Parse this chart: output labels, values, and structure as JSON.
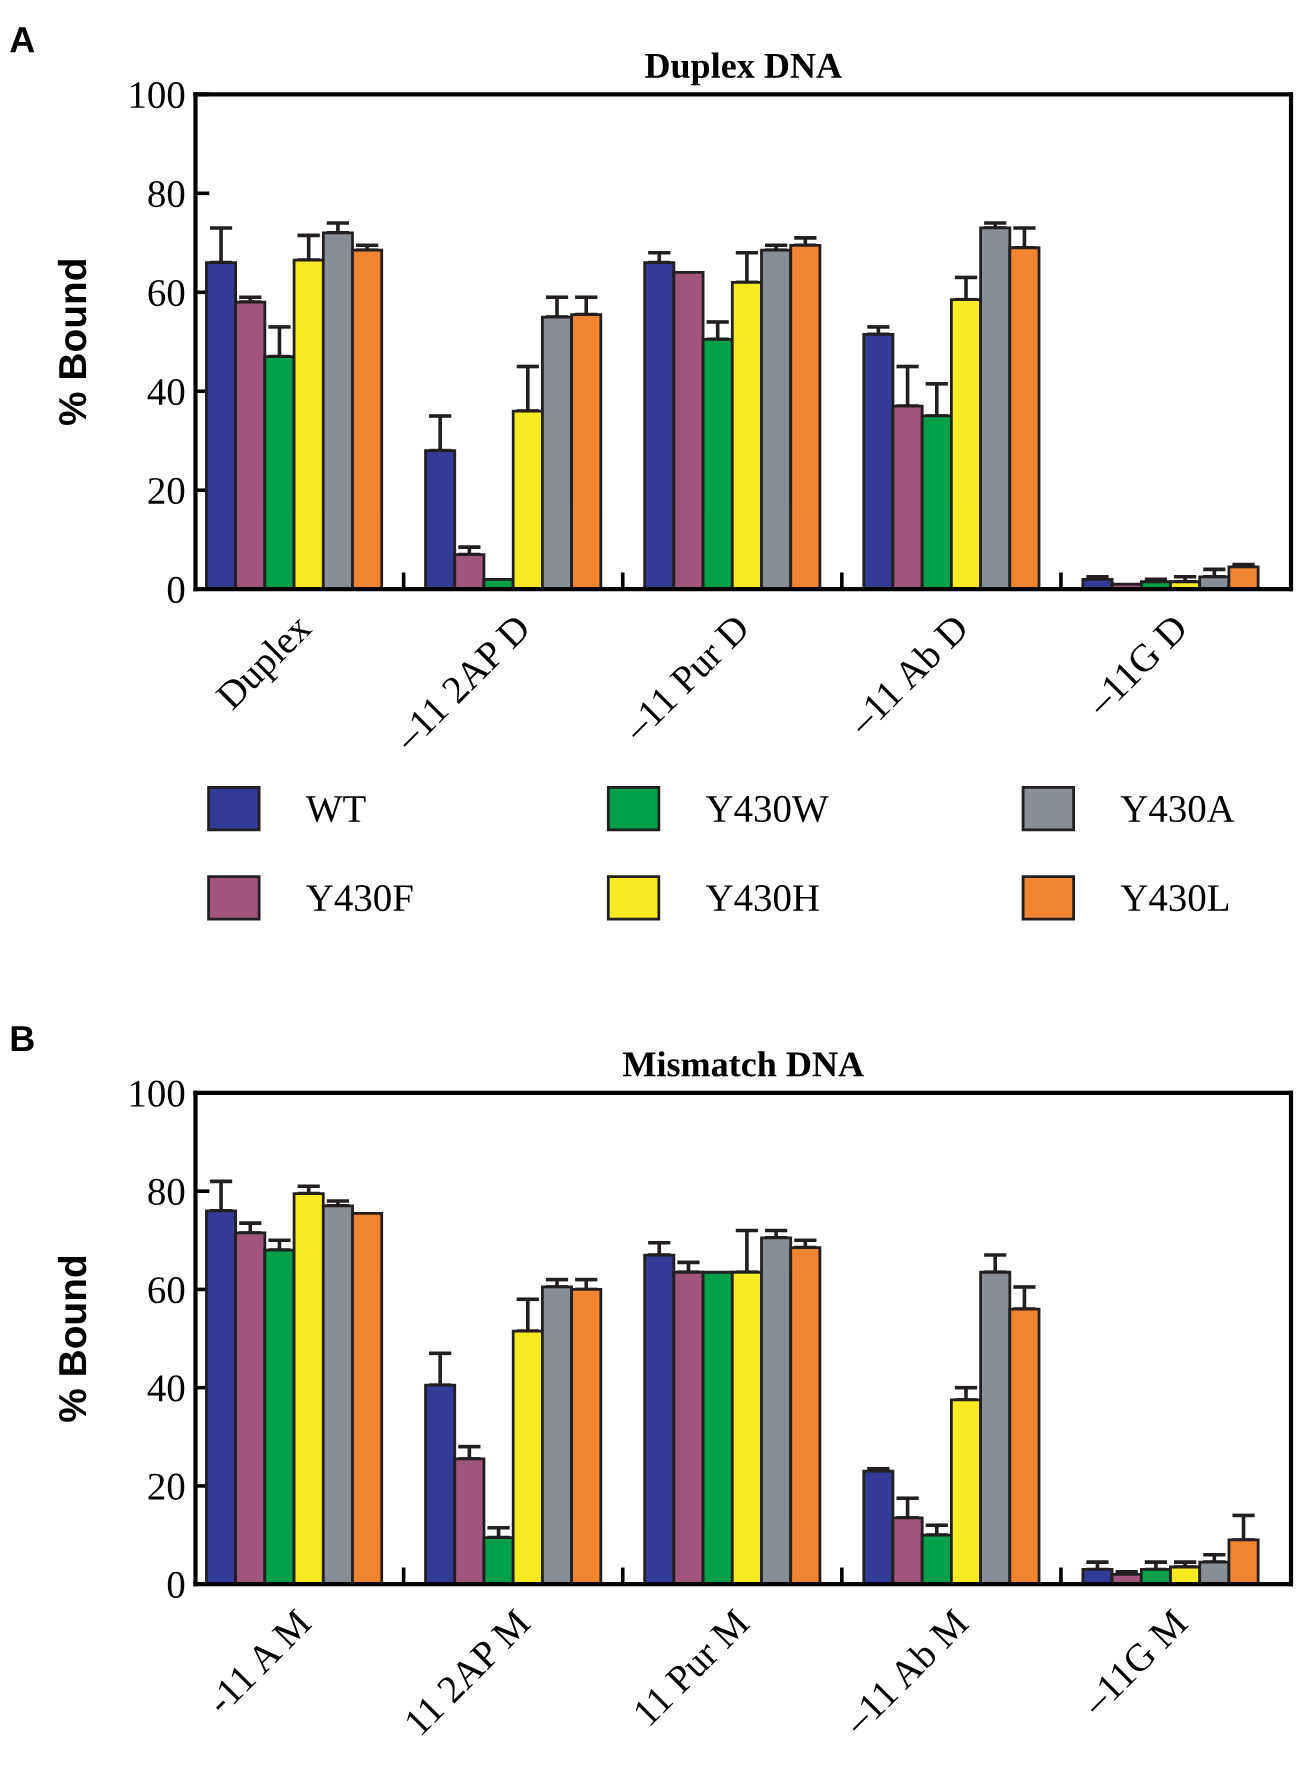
{
  "chart_data": [
    {
      "type": "bar",
      "title": "Duplex DNA",
      "ylabel": "% Bound",
      "annotations": [
        "A"
      ],
      "categories": [
        "Duplex",
        "–11 2AP D",
        "–11 Pur D",
        "–11 Ab D",
        "–11G D"
      ],
      "ylim": [
        0,
        100
      ],
      "yticks": [
        0,
        20,
        40,
        60,
        80,
        100
      ],
      "legend": "bottom",
      "grid": false,
      "series": [
        {
          "name": "WT",
          "color": "#333b96",
          "values": [
            66,
            28,
            66,
            51.5,
            2
          ],
          "errors": [
            [
              66,
              73
            ],
            [
              28,
              35
            ],
            [
              66,
              68
            ],
            [
              51.5,
              53
            ],
            [
              2,
              2.5
            ]
          ]
        },
        {
          "name": "Y430F",
          "color": "#a0557c",
          "values": [
            58,
            7,
            64,
            37,
            1
          ],
          "errors": [
            [
              58,
              59
            ],
            [
              7,
              8.5
            ],
            null,
            [
              37,
              45
            ],
            null
          ]
        },
        {
          "name": "Y430W",
          "color": "#00a04b",
          "values": [
            47,
            2,
            50.5,
            35,
            1.5
          ],
          "errors": [
            [
              47,
              53
            ],
            null,
            [
              50.5,
              54
            ],
            [
              35,
              41.5
            ],
            [
              1.5,
              2
            ]
          ]
        },
        {
          "name": "Y430H",
          "color": "#f8eb22",
          "values": [
            66.5,
            36,
            62,
            58.5,
            1.5
          ],
          "errors": [
            [
              66.5,
              71.5
            ],
            [
              36,
              45
            ],
            [
              62,
              68
            ],
            [
              58.5,
              63
            ],
            [
              1.5,
              2.5
            ]
          ]
        },
        {
          "name": "Y430A",
          "color": "#878e95",
          "values": [
            72,
            55,
            68.5,
            73,
            2.5
          ],
          "errors": [
            [
              72,
              74
            ],
            [
              55,
              59
            ],
            [
              68.5,
              69.5
            ],
            [
              73,
              74
            ],
            [
              2.5,
              4
            ]
          ]
        },
        {
          "name": "Y430L",
          "color": "#f08431",
          "values": [
            68.5,
            55.5,
            69.5,
            69,
            4.5
          ],
          "errors": [
            [
              68.5,
              69.5
            ],
            [
              55.5,
              59
            ],
            [
              69.5,
              71
            ],
            [
              69,
              73
            ],
            [
              4.5,
              5
            ]
          ]
        }
      ]
    },
    {
      "type": "bar",
      "title": "Mismatch DNA",
      "ylabel": "% Bound",
      "annotations": [
        "B"
      ],
      "categories": [
        "-11 A M",
        "11 2AP M",
        "11 Pur M",
        "–11 Ab M",
        "–11G M"
      ],
      "ylim": [
        0,
        100
      ],
      "yticks": [
        0,
        20,
        40,
        60,
        80,
        100
      ],
      "grid": false,
      "series": [
        {
          "color": "#333b96",
          "values": [
            76,
            40.5,
            67,
            23,
            3
          ],
          "errors": [
            [
              76,
              82
            ],
            [
              40.5,
              47
            ],
            [
              67,
              69.5
            ],
            [
              23,
              23.5
            ],
            [
              3,
              4.5
            ]
          ]
        },
        {
          "color": "#a0557c",
          "values": [
            71.5,
            25.5,
            63.5,
            13.5,
            2
          ],
          "errors": [
            [
              71.5,
              73.5
            ],
            [
              25.5,
              28
            ],
            [
              63.5,
              65.5
            ],
            [
              13.5,
              17.5
            ],
            [
              2,
              2.5
            ]
          ]
        },
        {
          "color": "#00a04b",
          "values": [
            68,
            9.5,
            63.5,
            10,
            3
          ],
          "errors": [
            [
              68,
              70
            ],
            [
              9.5,
              11.5
            ],
            null,
            [
              10,
              12
            ],
            [
              3,
              4.5
            ]
          ]
        },
        {
          "color": "#f8eb22",
          "values": [
            79.5,
            51.5,
            63.5,
            37.5,
            3.5
          ],
          "errors": [
            [
              79.5,
              81
            ],
            [
              51.5,
              58
            ],
            [
              63.5,
              72
            ],
            [
              37.5,
              40
            ],
            [
              3.5,
              4.5
            ]
          ]
        },
        {
          "color": "#878e95",
          "values": [
            77,
            60.5,
            70.5,
            63.5,
            4.5
          ],
          "errors": [
            [
              77,
              78
            ],
            [
              60.5,
              62
            ],
            [
              70.5,
              72
            ],
            [
              63.5,
              67
            ],
            [
              4.5,
              6
            ]
          ]
        },
        {
          "color": "#f08431",
          "values": [
            75.5,
            60,
            68.5,
            56,
            9
          ],
          "errors": [
            null,
            [
              60,
              62
            ],
            [
              68.5,
              70
            ],
            [
              56,
              60.5
            ],
            [
              9,
              14
            ]
          ]
        }
      ]
    }
  ]
}
